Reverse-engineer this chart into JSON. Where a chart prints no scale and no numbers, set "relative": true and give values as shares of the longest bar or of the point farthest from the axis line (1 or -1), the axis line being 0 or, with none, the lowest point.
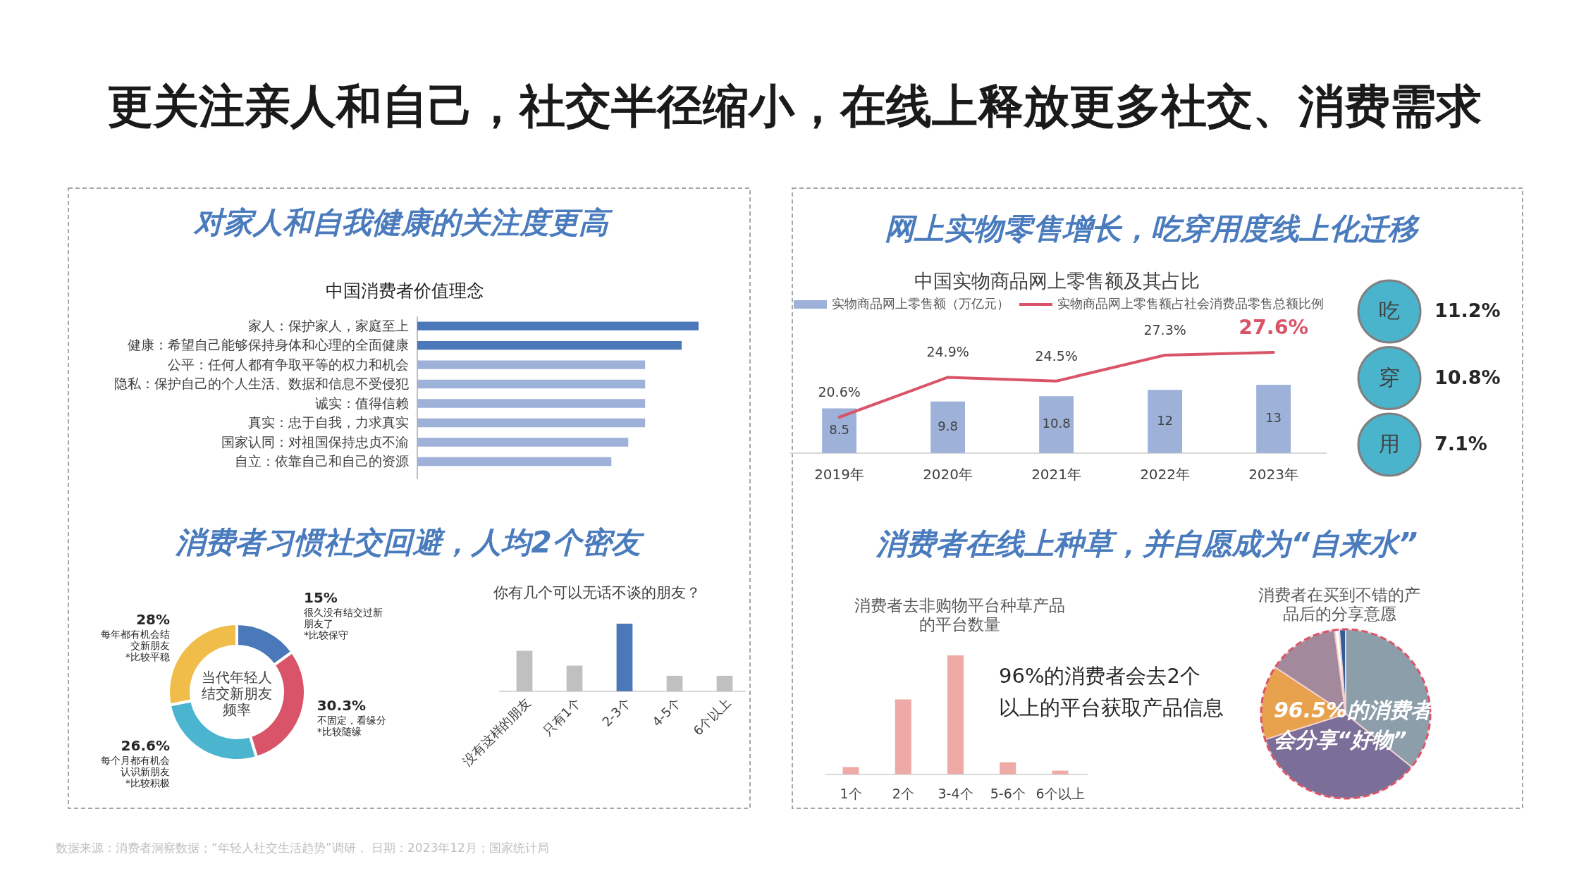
{
  "chart_data": [
    {
      "type": "other",
      "title": "更关注亲人和自己，社交半径缩小，在线上释放更多社交、消费需求",
      "annotations": [
        "数据来源：消费者洞察数据；“年轻人社交生活趋势”调研， 日期：2023年12月；国家统计局"
      ]
    },
    {
      "type": "bar",
      "orientation": "horizontal",
      "relative": true,
      "title": "对家人和自我健康的关注度更高",
      "subtitle": "中国消费者价值理念",
      "categories": [
        "家人：保护家人，家庭至上",
        "健康：希望自己能够保持身体和心理的全面健康",
        "公平：任何人都有争取平等的权力和机会",
        "隐私：保护自己的个人生活、数据和信息不受侵犯",
        "诚实：值得信赖",
        "真实：忠于自我，力求真实",
        "国家认同：对祖国保持忠贞不渝",
        "自立：依靠自己和自己的资源"
      ],
      "values": [
        1,
        0.94,
        0.81,
        0.81,
        0.81,
        0.81,
        0.75,
        0.69
      ],
      "colors": [
        "#4a78b8",
        "#4a78b8",
        "#9db1d9",
        "#9db1d9",
        "#9db1d9",
        "#9db1d9",
        "#9db1d9",
        "#9db1d9"
      ]
    },
    {
      "type": "donut",
      "title": "消费者习惯社交回避，人均2个密友",
      "subtitle": "当代年轻人结交新朋友频率",
      "categories": [
        "很久没有结交过新朋友了*比较保守",
        "不固定，看缘分*比较随缘",
        "每个月都有机会认识新朋友*比较积极",
        "每年都有机会结交新朋友*比较平稳"
      ],
      "values": [
        15,
        30.3,
        26.6,
        28
      ],
      "value_labels": [
        "15%",
        "30.3%",
        "26.6%",
        "28%"
      ],
      "colors": [
        "#4a78b8",
        "#d95468",
        "#4bb5cf",
        "#f0bd4a"
      ]
    },
    {
      "type": "bar",
      "relative": true,
      "title": "你有几个可以无话不谈的朋友？",
      "categories": [
        "没有这样的朋友",
        "只有1个",
        "2-3个",
        "4-5个",
        "6个以上"
      ],
      "values": [
        0.6,
        0.38,
        1,
        0.23,
        0.23
      ],
      "colors": [
        "#c0c0c0",
        "#c0c0c0",
        "#4a78b8",
        "#c0c0c0",
        "#c0c0c0"
      ]
    },
    {
      "type": "bar",
      "title": "网上实物零售增长，吃穿用度线上化迁移",
      "subtitle": "中国实物商品网上零售额及其占比",
      "categories": [
        "2019年",
        "2020年",
        "2021年",
        "2022年",
        "2023年"
      ],
      "series": [
        {
          "name": "实物商品网上零售额（万亿元）",
          "type": "bar",
          "color": "#9db1d9",
          "values": [
            8.5,
            9.8,
            10.8,
            12,
            13
          ],
          "value_labels": [
            "8.5",
            "9.8",
            "10.8",
            "12",
            "13"
          ]
        },
        {
          "name": "实物商品网上零售额占社会消费品零售总额比例",
          "type": "line",
          "axis": "y2",
          "color": "#d95468",
          "values": [
            20.6,
            24.9,
            24.5,
            27.3,
            27.6
          ],
          "value_labels": [
            "20.6%",
            "24.9%",
            "24.5%",
            "27.3%",
            "27.6%"
          ]
        }
      ],
      "tick_labels": "x",
      "legend": "top"
    },
    {
      "type": "other",
      "categories": [
        "吃",
        "穿",
        "用"
      ],
      "annotations": [
        "11.2%",
        "10.8%",
        "7.1%"
      ]
    },
    {
      "type": "bar",
      "relative": true,
      "title": "消费者在线上种草，并自愿成为“自来水”",
      "subtitle": "消费者去非购物平台种草产品的平台数量",
      "categories": [
        "1个",
        "2个",
        "3-4个",
        "5-6个",
        "6个以上"
      ],
      "values": [
        0.06,
        0.63,
        1,
        0.1,
        0.03
      ],
      "color": "#eeaaa6",
      "annotations": [
        "96%的消费者会去2个以上的平台获取产品信息"
      ]
    },
    {
      "type": "pie",
      "title": "消费者在买到不错的产品后的分享意愿",
      "categories": [
        null,
        null,
        null,
        null,
        null,
        null
      ],
      "values": [
        35.8,
        34.3,
        14.2,
        13.6,
        0.9,
        1.2
      ],
      "colors": [
        "#8c9ea9",
        "#7b6e98",
        "#e8a24e",
        "#a2899b",
        "#ffffff",
        "#2f5f9b"
      ],
      "annotations": [
        "96.5%的消费者会分享“好物”"
      ]
    }
  ]
}
